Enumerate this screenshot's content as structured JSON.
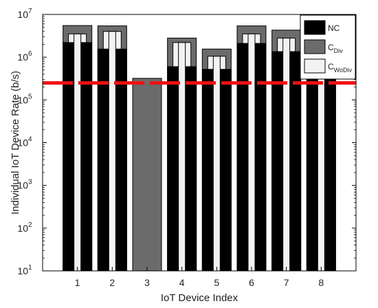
{
  "chart_data": {
    "type": "bar",
    "title": "",
    "xlabel": "IoT Device Index",
    "ylabel": "Individual IoT Device Rate (b/s)",
    "y_scale": "log",
    "ylim": [
      10,
      10000000
    ],
    "y_ticks": [
      {
        "value": 10,
        "base": "10",
        "exp": "1"
      },
      {
        "value": 100,
        "base": "10",
        "exp": "2"
      },
      {
        "value": 1000,
        "base": "10",
        "exp": "3"
      },
      {
        "value": 10000,
        "base": "10",
        "exp": "4"
      },
      {
        "value": 100000,
        "base": "10",
        "exp": "5"
      },
      {
        "value": 1000000,
        "base": "10",
        "exp": "6"
      },
      {
        "value": 10000000,
        "base": "10",
        "exp": "7"
      }
    ],
    "categories": [
      "1",
      "2",
      "3",
      "4",
      "5",
      "6",
      "7",
      "8"
    ],
    "series": [
      {
        "name": "NC",
        "legend_main": "NC",
        "legend_sub": "",
        "color": "#000000",
        "values": [
          2200000,
          1550000,
          null,
          600000,
          520000,
          2100000,
          1350000,
          1500000
        ]
      },
      {
        "name": "C_Div",
        "legend_main": "C",
        "legend_sub": "Div",
        "color": "#6b6b6b",
        "values": [
          5500000,
          5400000,
          320000,
          2800000,
          1550000,
          5400000,
          4300000,
          4600000
        ]
      },
      {
        "name": "C_WoDiv",
        "legend_main": "C",
        "legend_sub": "WoDiv",
        "color": "#f2f2f2",
        "values": [
          3500000,
          4000000,
          null,
          2200000,
          1050000,
          3500000,
          2800000,
          3000000
        ]
      }
    ],
    "threshold": {
      "value": 250000,
      "color": "#ee1111",
      "style": "dashed"
    },
    "grid": false,
    "legend_position": "top-right"
  }
}
